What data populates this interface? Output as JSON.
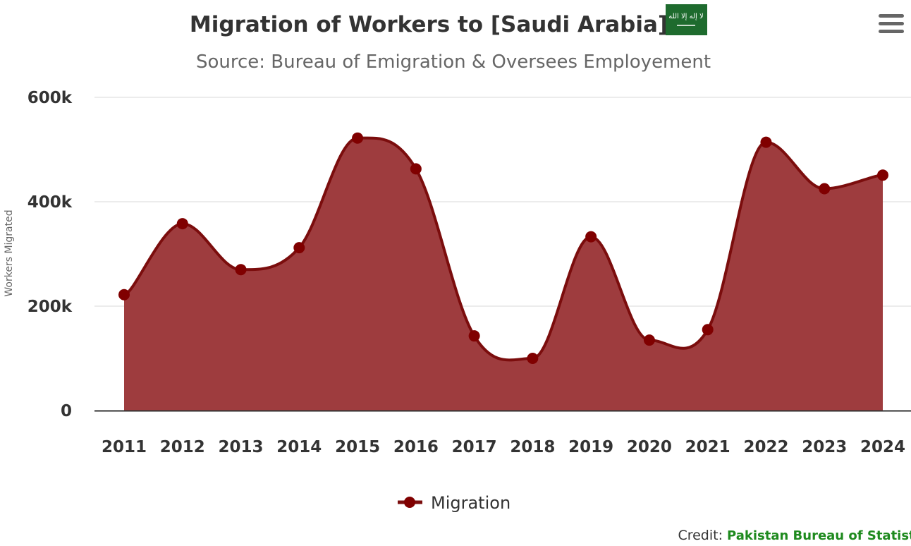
{
  "chart_data": {
    "type": "area",
    "title": "Migration of Workers to [Saudi Arabia]",
    "subtitle": "Source: Bureau of Emigration & Oversees Employement",
    "ylabel": "Workers Migrated",
    "xlabel": "",
    "categories": [
      "2011",
      "2012",
      "2013",
      "2014",
      "2015",
      "2016",
      "2017",
      "2018",
      "2019",
      "2020",
      "2021",
      "2022",
      "2023",
      "2024"
    ],
    "series": [
      {
        "name": "Migration",
        "values": [
          222000,
          358000,
          270000,
          312000,
          522000,
          463000,
          143000,
          100000,
          333000,
          135000,
          155000,
          514000,
          425000,
          451000
        ]
      }
    ],
    "ylim": [
      0,
      600000
    ],
    "yticks": [
      {
        "value": 0,
        "label": "0"
      },
      {
        "value": 200000,
        "label": "200k"
      },
      {
        "value": 400000,
        "label": "400k"
      },
      {
        "value": 600000,
        "label": "600k"
      }
    ],
    "grid": true,
    "legend_position": "bottom-center",
    "colors": {
      "fill": "#9e3c3e",
      "line": "#7b0d0d",
      "marker": "#800000",
      "grid": "#e6e6e6",
      "axis": "#333333"
    }
  },
  "header": {
    "flag_icon": "saudi-flag-icon",
    "menu_icon": "hamburger-menu-icon"
  },
  "credit": {
    "label": "Credit:",
    "source": "Pakistan Bureau of Statistics"
  }
}
